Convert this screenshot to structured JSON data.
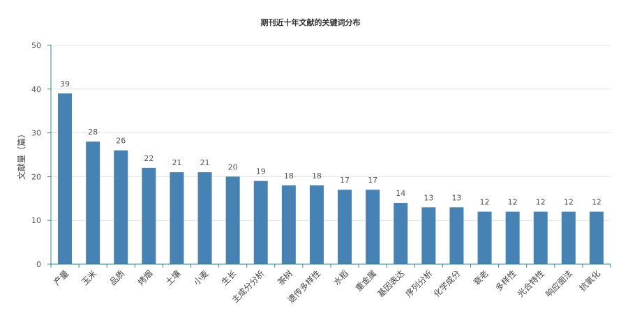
{
  "chart_data": {
    "type": "bar",
    "title": "期刊近十年文献的关键词分布",
    "xlabel": "",
    "ylabel": "文献量（篇）",
    "ylim": [
      0,
      50
    ],
    "yticks": [
      0,
      10,
      20,
      30,
      40,
      50
    ],
    "grid": true,
    "bar_color": "#4682b4",
    "categories": [
      "产量",
      "玉米",
      "品质",
      "烤烟",
      "土壤",
      "小麦",
      "生长",
      "主成分分析",
      "茶树",
      "遗传多样性",
      "水稻",
      "重金属",
      "基因表达",
      "序列分析",
      "化学成分",
      "衰老",
      "多样性",
      "光合特性",
      "响应面法",
      "抗氧化"
    ],
    "values": [
      39,
      28,
      26,
      22,
      21,
      21,
      20,
      19,
      18,
      18,
      17,
      17,
      14,
      13,
      13,
      12,
      12,
      12,
      12,
      12
    ]
  }
}
